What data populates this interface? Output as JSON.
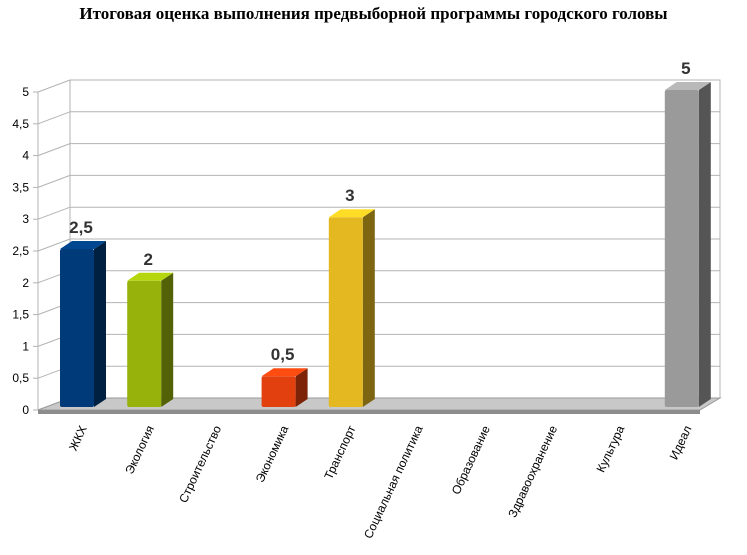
{
  "chart_data": {
    "type": "bar",
    "title": "Итоговая оценка выполнения предвыборной программы городского головы",
    "xlabel": "",
    "ylabel": "",
    "ylim": [
      0,
      5
    ],
    "yticks": [
      "0",
      "0,5",
      "1",
      "1,5",
      "2",
      "2,5",
      "3",
      "3,5",
      "4",
      "4,5",
      "5"
    ],
    "grid": true,
    "legend": "none",
    "categories": [
      "ЖКХ",
      "Экология",
      "Строительство",
      "Экономика",
      "Транспорт",
      "Социальная политика",
      "Образование",
      "Здравоохранение",
      "Культура",
      "Идеал"
    ],
    "values": [
      2.5,
      2,
      0,
      0.5,
      3,
      0,
      0,
      0,
      0,
      5
    ],
    "data_labels": [
      "2,5",
      "2",
      "",
      "0,5",
      "3",
      "",
      "",
      "",
      "",
      "5"
    ],
    "colors": [
      "#003a78",
      "#97b20a",
      "#999999",
      "#e2400e",
      "#e3b820",
      "#999999",
      "#999999",
      "#999999",
      "#999999",
      "#9a9a9a"
    ]
  }
}
